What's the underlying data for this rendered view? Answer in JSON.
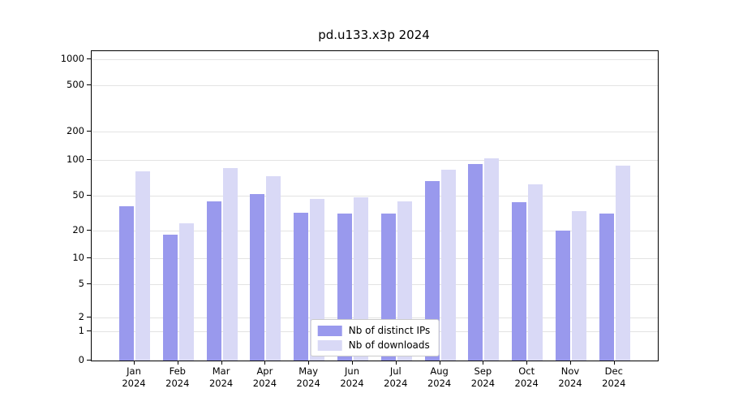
{
  "title": "pd.u133.x3p 2024",
  "chart_data": {
    "type": "bar",
    "scale": "symlog",
    "grid": true,
    "legend_position": "lower center",
    "title": "pd.u133.x3p 2024",
    "categories": [
      "Jan",
      "Feb",
      "Mar",
      "Apr",
      "May",
      "Jun",
      "Jul",
      "Aug",
      "Sep",
      "Oct",
      "Nov",
      "Dec"
    ],
    "year": "2024",
    "yticks": [
      0,
      1,
      2,
      5,
      10,
      20,
      50,
      100,
      200,
      500,
      1000
    ],
    "ylim": [
      0,
      1150
    ],
    "series": [
      {
        "name": "Nb of distinct IPs",
        "color": "#9999ed",
        "values": [
          38,
          18,
          43,
          52,
          32,
          31,
          31,
          66,
          92,
          42,
          20,
          31
        ]
      },
      {
        "name": "Nb of downloads",
        "color": "#d9d9f6",
        "values": [
          80,
          24,
          85,
          73,
          46,
          48,
          43,
          83,
          105,
          62,
          33,
          90
        ]
      }
    ]
  }
}
